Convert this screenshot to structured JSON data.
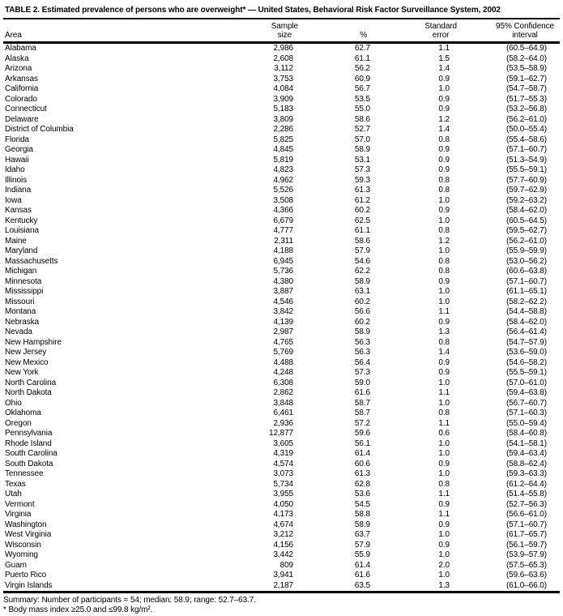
{
  "table": {
    "title": "TABLE 2. Estimated prevalence of persons who are overweight* — United States, Behavioral Risk Factor Surveillance System, 2002",
    "columns": {
      "area": "Area",
      "sample_line1": "Sample",
      "sample_line2": "size",
      "percent": "%",
      "se_line1": "Standard",
      "se_line2": "error",
      "ci_line1": "95% Confidence",
      "ci_line2": "interval"
    },
    "rows": [
      {
        "area": "Alabama",
        "sample": "2,986",
        "percent": "62.7",
        "se": "1.1",
        "ci": "(60.5–64.9)"
      },
      {
        "area": "Alaska",
        "sample": "2,608",
        "percent": "61.1",
        "se": "1.5",
        "ci": "(58.2–64.0)"
      },
      {
        "area": "Arizona",
        "sample": "3,112",
        "percent": "56.2",
        "se": "1.4",
        "ci": "(53.5–58.9)"
      },
      {
        "area": "Arkansas",
        "sample": "3,753",
        "percent": "60.9",
        "se": "0.9",
        "ci": "(59.1–62.7)"
      },
      {
        "area": "California",
        "sample": "4,084",
        "percent": "56.7",
        "se": "1.0",
        "ci": "(54.7–58.7)"
      },
      {
        "area": "Colorado",
        "sample": "3,909",
        "percent": "53.5",
        "se": "0.9",
        "ci": "(51.7–55.3)"
      },
      {
        "area": "Connecticut",
        "sample": "5,183",
        "percent": "55.0",
        "se": "0.9",
        "ci": "(53.2–56.8)"
      },
      {
        "area": "Delaware",
        "sample": "3,809",
        "percent": "58.6",
        "se": "1.2",
        "ci": "(56.2–61.0)"
      },
      {
        "area": "District of Columbia",
        "sample": "2,286",
        "percent": "52.7",
        "se": "1.4",
        "ci": "(50.0–55.4)"
      },
      {
        "area": "Florida",
        "sample": "5,825",
        "percent": "57.0",
        "se": "0.8",
        "ci": "(55.4–58.6)"
      },
      {
        "area": "Georgia",
        "sample": "4,845",
        "percent": "58.9",
        "se": "0.9",
        "ci": "(57.1–60.7)"
      },
      {
        "area": "Hawaii",
        "sample": "5,819",
        "percent": "53.1",
        "se": "0.9",
        "ci": "(51.3–54.9)"
      },
      {
        "area": "Idaho",
        "sample": "4,823",
        "percent": "57.3",
        "se": "0.9",
        "ci": "(55.5–59.1)"
      },
      {
        "area": "Illinois",
        "sample": "4,962",
        "percent": "59.3",
        "se": "0.8",
        "ci": "(57.7–60.9)"
      },
      {
        "area": "Indiana",
        "sample": "5,526",
        "percent": "61.3",
        "se": "0.8",
        "ci": "(59.7–62.9)"
      },
      {
        "area": "Iowa",
        "sample": "3,508",
        "percent": "61.2",
        "se": "1.0",
        "ci": "(59.2–63.2)"
      },
      {
        "area": "Kansas",
        "sample": "4,366",
        "percent": "60.2",
        "se": "0.9",
        "ci": "(58.4–62.0)"
      },
      {
        "area": "Kentucky",
        "sample": "6,679",
        "percent": "62.5",
        "se": "1.0",
        "ci": "(60.5–64.5)"
      },
      {
        "area": "Louisiana",
        "sample": "4,777",
        "percent": "61.1",
        "se": "0.8",
        "ci": "(59.5–62.7)"
      },
      {
        "area": "Maine",
        "sample": "2,311",
        "percent": "58.6",
        "se": "1.2",
        "ci": "(56.2–61.0)"
      },
      {
        "area": "Maryland",
        "sample": "4,188",
        "percent": "57.9",
        "se": "1.0",
        "ci": "(55.9–59.9)"
      },
      {
        "area": "Massachusetts",
        "sample": "6,945",
        "percent": "54.6",
        "se": "0.8",
        "ci": "(53.0–56.2)"
      },
      {
        "area": "Michigan",
        "sample": "5,736",
        "percent": "62.2",
        "se": "0.8",
        "ci": "(60.6–63.8)"
      },
      {
        "area": "Minnesota",
        "sample": "4,380",
        "percent": "58.9",
        "se": "0.9",
        "ci": "(57.1–60.7)"
      },
      {
        "area": "Mississippi",
        "sample": "3,887",
        "percent": "63.1",
        "se": "1.0",
        "ci": "(61.1–65.1)"
      },
      {
        "area": "Missouri",
        "sample": "4,546",
        "percent": "60.2",
        "se": "1.0",
        "ci": "(58.2–62.2)"
      },
      {
        "area": "Montana",
        "sample": "3,842",
        "percent": "56.6",
        "se": "1.1",
        "ci": "(54.4–58.8)"
      },
      {
        "area": "Nebraska",
        "sample": "4,139",
        "percent": "60.2",
        "se": "0.9",
        "ci": "(58.4–62.0)"
      },
      {
        "area": "Nevada",
        "sample": "2,987",
        "percent": "58.9",
        "se": "1.3",
        "ci": "(56.4–61.4)"
      },
      {
        "area": "New Hampshire",
        "sample": "4,765",
        "percent": "56.3",
        "se": "0.8",
        "ci": "(54.7–57.9)"
      },
      {
        "area": "New Jersey",
        "sample": "5,769",
        "percent": "56.3",
        "se": "1.4",
        "ci": "(53.6–59.0)"
      },
      {
        "area": "New Mexico",
        "sample": "4,488",
        "percent": "56.4",
        "se": "0.9",
        "ci": "(54.6–58.2)"
      },
      {
        "area": "New York",
        "sample": "4,248",
        "percent": "57.3",
        "se": "0.9",
        "ci": "(55.5–59.1)"
      },
      {
        "area": "North Carolina",
        "sample": "6,308",
        "percent": "59.0",
        "se": "1.0",
        "ci": "(57.0–61.0)"
      },
      {
        "area": "North Dakota",
        "sample": "2,862",
        "percent": "61.6",
        "se": "1.1",
        "ci": "(59.4–63.8)"
      },
      {
        "area": "Ohio",
        "sample": "3,848",
        "percent": "58.7",
        "se": "1.0",
        "ci": "(56.7–60.7)"
      },
      {
        "area": "Oklahoma",
        "sample": "6,461",
        "percent": "58.7",
        "se": "0.8",
        "ci": "(57.1–60.3)"
      },
      {
        "area": "Oregon",
        "sample": "2,936",
        "percent": "57.2",
        "se": "1.1",
        "ci": "(55.0–59.4)"
      },
      {
        "area": "Pennsylvania",
        "sample": "12,877",
        "percent": "59.6",
        "se": "0.6",
        "ci": "(58.4–60.8)"
      },
      {
        "area": "Rhode Island",
        "sample": "3,605",
        "percent": "56.1",
        "se": "1.0",
        "ci": "(54.1–58.1)"
      },
      {
        "area": "South Carolina",
        "sample": "4,319",
        "percent": "61.4",
        "se": "1.0",
        "ci": "(59.4–63.4)"
      },
      {
        "area": "South Dakota",
        "sample": "4,574",
        "percent": "60.6",
        "se": "0.9",
        "ci": "(58.8–62.4)"
      },
      {
        "area": "Tennessee",
        "sample": "3,073",
        "percent": "61.3",
        "se": "1.0",
        "ci": "(59.3–63.3)"
      },
      {
        "area": "Texas",
        "sample": "5,734",
        "percent": "62.8",
        "se": "0.8",
        "ci": "(61.2–64.4)"
      },
      {
        "area": "Utah",
        "sample": "3,955",
        "percent": "53.6",
        "se": "1.1",
        "ci": "(51.4–55.8)"
      },
      {
        "area": "Vermont",
        "sample": "4,050",
        "percent": "54.5",
        "se": "0.9",
        "ci": "(52.7–56.3)"
      },
      {
        "area": "Virginia",
        "sample": "4,173",
        "percent": "58.8",
        "se": "1.1",
        "ci": "(56.6–61.0)"
      },
      {
        "area": "Washington",
        "sample": "4,674",
        "percent": "58.9",
        "se": "0.9",
        "ci": "(57.1–60.7)"
      },
      {
        "area": "West Virginia",
        "sample": "3,212",
        "percent": "63.7",
        "se": "1.0",
        "ci": "(61.7–65.7)"
      },
      {
        "area": "Wisconsin",
        "sample": "4,156",
        "percent": "57.9",
        "se": "0.9",
        "ci": "(56.1–59.7)"
      },
      {
        "area": "Wyoming",
        "sample": "3,442",
        "percent": "55.9",
        "se": "1.0",
        "ci": "(53.9–57.9)"
      },
      {
        "area": "Guam",
        "sample": "809",
        "percent": "61.4",
        "se": "2.0",
        "ci": "(57.5–65.3)"
      },
      {
        "area": "Puerto Rico",
        "sample": "3,941",
        "percent": "61.6",
        "se": "1.0",
        "ci": "(59.6–63.6)"
      },
      {
        "area": "Virgin Islands",
        "sample": "2,187",
        "percent": "63.5",
        "se": "1.3",
        "ci": "(61.0–66.0)"
      }
    ],
    "summary": "Summary: Number of participants = 54; median: 58.9; range: 52.7–63.7.",
    "footnote": "* Body mass index ≥25.0 and ≤99.8 kg/m²."
  }
}
